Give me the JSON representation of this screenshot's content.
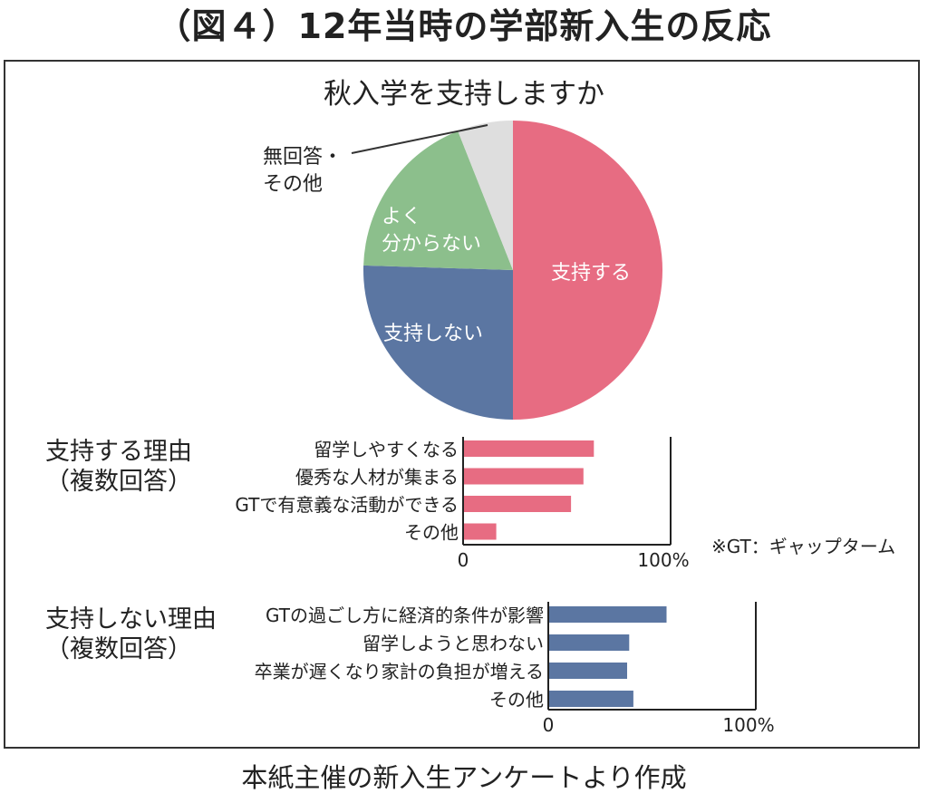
{
  "figure_title": "（図４）12年当時の学部新入生の反応",
  "source_note": "本紙主催の新入生アンケートより作成",
  "chart_data": [
    {
      "type": "pie",
      "title": "秋入学を支持しますか",
      "slices": [
        {
          "label": "支持する",
          "value": 50.0,
          "color": "#e76c82"
        },
        {
          "label": "支持しない",
          "value": 25.5,
          "color": "#5b76a2"
        },
        {
          "label": "よく\n分からない",
          "value": 18.5,
          "color": "#8cbf8c"
        },
        {
          "label": "無回答・\nその他",
          "value": 6.0,
          "color": "#dedede"
        }
      ]
    },
    {
      "type": "bar",
      "orientation": "horizontal",
      "title": "支持する理由\n（複数回答）",
      "categories": [
        "留学しやすくなる",
        "優秀な人材が集まる",
        "GTで有意義な活動ができる",
        "その他"
      ],
      "values": [
        63,
        58,
        52,
        16
      ],
      "xlim": [
        0,
        100
      ],
      "x_tick_labels": [
        "0",
        "100%"
      ],
      "color": "#e76c82",
      "note": "※GT：ギャップターム"
    },
    {
      "type": "bar",
      "orientation": "horizontal",
      "title": "支持しない理由\n（複数回答）",
      "categories": [
        "GTの過ごし方に経済的条件が影響",
        "留学しようと思わない",
        "卒業が遅くなり家計の負担が増える",
        "その他"
      ],
      "values": [
        57,
        39,
        38,
        41
      ],
      "xlim": [
        0,
        100
      ],
      "x_tick_labels": [
        "0",
        "100%"
      ],
      "color": "#5b76a2"
    }
  ]
}
